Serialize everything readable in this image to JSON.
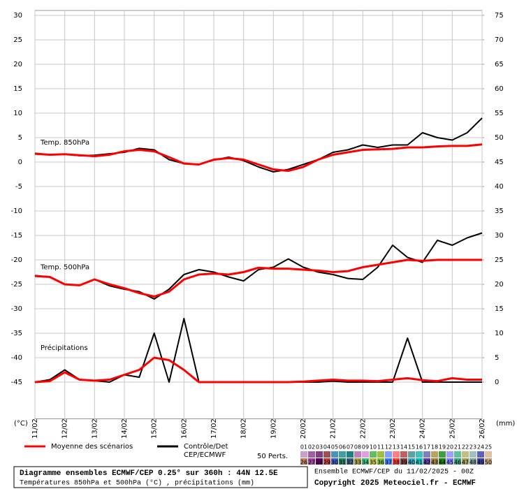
{
  "chart_data": {
    "type": "line",
    "xlim": [
      0,
      15
    ],
    "xticks": [
      {
        "value": 0,
        "label": "11/02"
      },
      {
        "value": 1,
        "label": "12/02"
      },
      {
        "value": 2,
        "label": "13/02"
      },
      {
        "value": 3,
        "label": "14/02"
      },
      {
        "value": 4,
        "label": "15/02"
      },
      {
        "value": 5,
        "label": "16/02"
      },
      {
        "value": 6,
        "label": "17/02"
      },
      {
        "value": 7,
        "label": "18/02"
      },
      {
        "value": 8,
        "label": "19/02"
      },
      {
        "value": 9,
        "label": "20/02"
      },
      {
        "value": 10,
        "label": "21/02"
      },
      {
        "value": 11,
        "label": "22/02"
      },
      {
        "value": 12,
        "label": "23/02"
      },
      {
        "value": 13,
        "label": "24/02"
      },
      {
        "value": 14,
        "label": "25/02"
      },
      {
        "value": 15,
        "label": "26/02"
      }
    ],
    "ylim": [
      -52.5,
      31
    ],
    "yticks": [
      30,
      25,
      20,
      15,
      10,
      5,
      0,
      -5,
      -10,
      -15,
      -20,
      -25,
      -30,
      -35,
      -40,
      -45
    ],
    "y2lim": [
      -7.5,
      76
    ],
    "y2ticks": [
      75,
      70,
      65,
      60,
      55,
      50,
      45,
      40,
      35,
      30,
      25,
      20,
      15,
      10,
      5,
      0
    ],
    "ylabel": "(°C)",
    "y2label": "(mm)",
    "grid": true,
    "annotations": [
      "Temp. 850hPa",
      "Temp. 500hPa",
      "Précipitations"
    ],
    "x": [
      0,
      0.5,
      1,
      1.5,
      2,
      2.5,
      3,
      3.5,
      4,
      4.5,
      5,
      5.5,
      6,
      6.5,
      7,
      7.5,
      8,
      8.5,
      9,
      9.5,
      10,
      10.5,
      11,
      11.5,
      12,
      12.5,
      13,
      13.5,
      14,
      14.5,
      15
    ],
    "series": [
      {
        "role": "control",
        "color": "#000000",
        "values": [
          1.8,
          1.5,
          1.6,
          1.3,
          1.4,
          1.7,
          2,
          2.8,
          2.5,
          0.5,
          -0.3,
          -0.5,
          0.4,
          1,
          0.3,
          -1,
          -2,
          -1.5,
          -0.5,
          0.5,
          2,
          2.5,
          3.5,
          3,
          3.5,
          3.5,
          6,
          5,
          4.5,
          6,
          9
        ]
      },
      {
        "role": "mean",
        "color": "#ff0000",
        "values": [
          1.7,
          1.5,
          1.6,
          1.4,
          1.2,
          1.5,
          2.2,
          2.5,
          2.2,
          1,
          -0.3,
          -0.5,
          0.5,
          0.8,
          0.5,
          -0.5,
          -1.5,
          -1.8,
          -1,
          0.5,
          1.5,
          2,
          2.5,
          2.6,
          2.7,
          3,
          3,
          3.2,
          3.3,
          3.3,
          3.6
        ]
      },
      {
        "role": "control",
        "color": "#000000",
        "values": [
          -23.2,
          -23.5,
          -25,
          -25.2,
          -24,
          -25.3,
          -26,
          -26.5,
          -28,
          -26,
          -23,
          -22,
          -22.5,
          -23.5,
          -24.3,
          -22,
          -21.5,
          -19.8,
          -21.5,
          -22.5,
          -23,
          -23.8,
          -24,
          -21.5,
          -17,
          -19.5,
          -20.5,
          -16,
          -17,
          -15.5,
          -14.5
        ]
      },
      {
        "role": "mean",
        "color": "#ff0000",
        "values": [
          -23.3,
          -23.5,
          -25,
          -25.2,
          -24,
          -25,
          -25.8,
          -26.8,
          -27.5,
          -26.5,
          -24,
          -23,
          -22.8,
          -23,
          -22.5,
          -21.6,
          -21.8,
          -21.8,
          -22,
          -22.2,
          -22.5,
          -22.3,
          -21.5,
          -21,
          -20.5,
          -20,
          -20.2,
          -20,
          -20,
          -20,
          -20
        ]
      },
      {
        "role": "control",
        "color": "#000000",
        "axis": "y2",
        "values": [
          0,
          0.5,
          2.5,
          0.5,
          0.3,
          0,
          1.5,
          1,
          10,
          0,
          13,
          0,
          0,
          0,
          0,
          0,
          0,
          0,
          0,
          0,
          0.2,
          0,
          0,
          0,
          0,
          9,
          0,
          0,
          0,
          0,
          0
        ]
      },
      {
        "role": "mean",
        "color": "#ff0000",
        "axis": "y2",
        "values": [
          0,
          0.2,
          2,
          0.5,
          0.3,
          0.5,
          1.5,
          2.5,
          5,
          4.5,
          2.5,
          0,
          0,
          0,
          0,
          0,
          0,
          0,
          0.1,
          0.3,
          0.5,
          0.3,
          0.3,
          0.2,
          0.5,
          0.8,
          0.4,
          0.2,
          0.8,
          0.5,
          0.5
        ]
      }
    ],
    "legend": [
      {
        "label": "Moyenne des scénarios",
        "color": "#ff0000"
      },
      {
        "label": "Contrôle/Det",
        "label2": "CEP/ECMWF",
        "color": "#000000"
      }
    ],
    "perturbations": {
      "label": "50 Perts.",
      "members": [
        {
          "id": "01",
          "color": "#c8a0c8"
        },
        {
          "id": "02",
          "color": "#a060a0"
        },
        {
          "id": "03",
          "color": "#804080"
        },
        {
          "id": "04",
          "color": "#a05050"
        },
        {
          "id": "05",
          "color": "#5090c0"
        },
        {
          "id": "06",
          "color": "#40a0a0"
        },
        {
          "id": "07",
          "color": "#208080"
        },
        {
          "id": "08",
          "color": "#c080c0"
        },
        {
          "id": "09",
          "color": "#e0a0e0"
        },
        {
          "id": "10",
          "color": "#60c060"
        },
        {
          "id": "11",
          "color": "#a0c040"
        },
        {
          "id": "12",
          "color": "#80a0ff"
        },
        {
          "id": "13",
          "color": "#ff8080"
        },
        {
          "id": "14",
          "color": "#c06060"
        },
        {
          "id": "15",
          "color": "#60a0a0"
        },
        {
          "id": "16",
          "color": "#40c0c0"
        },
        {
          "id": "17",
          "color": "#8080c0"
        },
        {
          "id": "18",
          "color": "#c0a060"
        },
        {
          "id": "19",
          "color": "#40a040"
        },
        {
          "id": "20",
          "color": "#a0a0ff"
        },
        {
          "id": "21",
          "color": "#60c0a0"
        },
        {
          "id": "22",
          "color": "#c0c080"
        },
        {
          "id": "23",
          "color": "#a0c0c0"
        },
        {
          "id": "24",
          "color": "#6060c0"
        },
        {
          "id": "25",
          "color": "#e0c0a0"
        },
        {
          "id": "26",
          "color": "#c08060"
        },
        {
          "id": "27",
          "color": "#a040a0"
        },
        {
          "id": "28",
          "color": "#600060"
        },
        {
          "id": "29",
          "color": "#c04040"
        },
        {
          "id": "30",
          "color": "#4060c0"
        },
        {
          "id": "31",
          "color": "#208060"
        },
        {
          "id": "32",
          "color": "#406080"
        },
        {
          "id": "33",
          "color": "#a0a040"
        },
        {
          "id": "34",
          "color": "#40c080"
        },
        {
          "id": "35",
          "color": "#c0c040"
        },
        {
          "id": "36",
          "color": "#80c040"
        },
        {
          "id": "37",
          "color": "#4080ff"
        },
        {
          "id": "38",
          "color": "#ff4040"
        },
        {
          "id": "39",
          "color": "#804040"
        },
        {
          "id": "40",
          "color": "#40a0c0"
        },
        {
          "id": "41",
          "color": "#00c0c0"
        },
        {
          "id": "42",
          "color": "#6040a0"
        },
        {
          "id": "43",
          "color": "#a08040"
        },
        {
          "id": "44",
          "color": "#208020"
        },
        {
          "id": "45",
          "color": "#8080ff"
        },
        {
          "id": "46",
          "color": "#40a080"
        },
        {
          "id": "47",
          "color": "#a0a060"
        },
        {
          "id": "48",
          "color": "#80a0a0"
        },
        {
          "id": "49",
          "color": "#4040a0"
        },
        {
          "id": "50",
          "color": "#c0a080"
        }
      ]
    },
    "footer": {
      "title": "Diagramme ensembles ECMWF/CEP 0.25° sur 360h : 44N 12.5E",
      "subtitle": "Températures 850hPa et 500hPa (°C) , précipitations (mm)",
      "run": "Ensemble ECMWF/CEP du 11/02/2025 - 00Z",
      "copyright": "Copyright 2025 Meteociel.fr - ECMWF"
    }
  }
}
